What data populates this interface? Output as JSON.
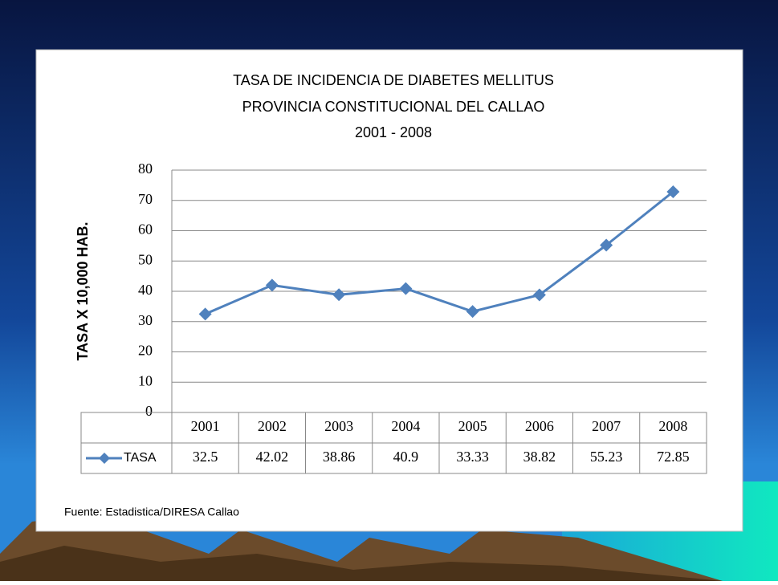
{
  "chart_data": {
    "type": "line",
    "title_lines": [
      "TASA DE INCIDENCIA DE DIABETES MELLITUS",
      "PROVINCIA CONSTITUCIONAL DEL CALLAO",
      "2001 - 2008"
    ],
    "y_label": "TASA X 10,000 HAB.",
    "categories": [
      "2001",
      "2002",
      "2003",
      "2004",
      "2005",
      "2006",
      "2007",
      "2008"
    ],
    "series": [
      {
        "name": "TASA",
        "color": "#4f81bd",
        "values": [
          32.5,
          42.02,
          38.86,
          40.9,
          33.33,
          38.82,
          55.23,
          72.85
        ]
      }
    ],
    "ylim": [
      0,
      80
    ],
    "yticks": [
      0,
      10,
      20,
      30,
      40,
      50,
      60,
      70,
      80
    ],
    "grid": true,
    "source": "Fuente: Estadistica/DIRESA Callao"
  }
}
